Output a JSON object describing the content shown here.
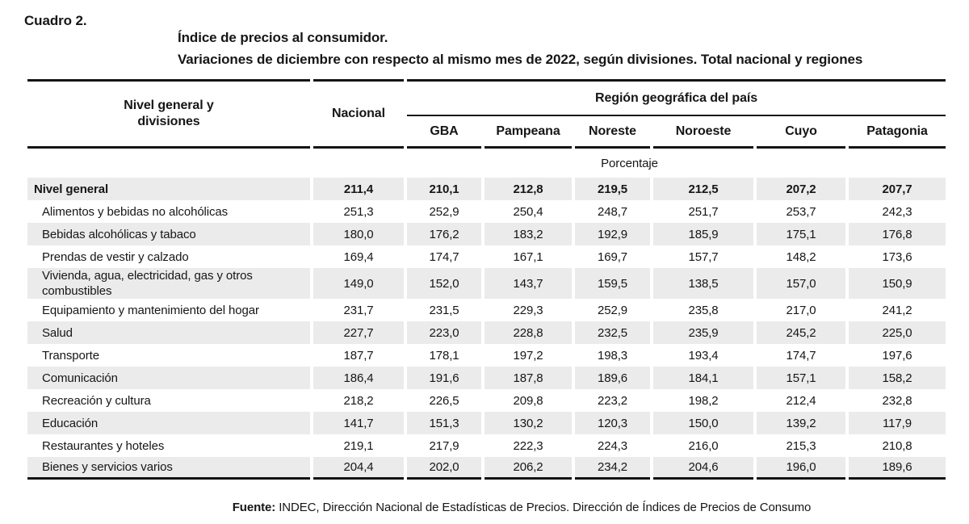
{
  "page": {
    "cuadro_label": "Cuadro 2.",
    "title_lines": [
      "Índice de precios al consumidor.",
      "Variaciones de diciembre con respecto al mismo mes de 2022, según divisiones. Total nacional y regiones"
    ]
  },
  "table": {
    "row_header_lines": [
      "Nivel general y",
      "divisiones"
    ],
    "national_header": "Nacional",
    "region_group_header": "Región geográfica del país",
    "region_headers": [
      "GBA",
      "Pampeana",
      "Noreste",
      "Noroeste",
      "Cuyo",
      "Patagonia"
    ],
    "unit_label": "Porcentaje",
    "columns": [
      "Nacional",
      "GBA",
      "Pampeana",
      "Noreste",
      "Noroeste",
      "Cuyo",
      "Patagonia"
    ],
    "rows": [
      {
        "label": "Nivel general",
        "values": [
          "211,4",
          "210,1",
          "212,8",
          "219,5",
          "212,5",
          "207,2",
          "207,7"
        ]
      },
      {
        "label": "Alimentos y bebidas no alcohólicas",
        "values": [
          "251,3",
          "252,9",
          "250,4",
          "248,7",
          "251,7",
          "253,7",
          "242,3"
        ]
      },
      {
        "label": "Bebidas alcohólicas y tabaco",
        "values": [
          "180,0",
          "176,2",
          "183,2",
          "192,9",
          "185,9",
          "175,1",
          "176,8"
        ]
      },
      {
        "label": "Prendas de vestir y calzado",
        "values": [
          "169,4",
          "174,7",
          "167,1",
          "169,7",
          "157,7",
          "148,2",
          "173,6"
        ]
      },
      {
        "label": "Vivienda, agua, electricidad, gas y otros combustibles",
        "values": [
          "149,0",
          "152,0",
          "143,7",
          "159,5",
          "138,5",
          "157,0",
          "150,9"
        ]
      },
      {
        "label": "Equipamiento y mantenimiento del hogar",
        "values": [
          "231,7",
          "231,5",
          "229,3",
          "252,9",
          "235,8",
          "217,0",
          "241,2"
        ]
      },
      {
        "label": "Salud",
        "values": [
          "227,7",
          "223,0",
          "228,8",
          "232,5",
          "235,9",
          "245,2",
          "225,0"
        ]
      },
      {
        "label": "Transporte",
        "values": [
          "187,7",
          "178,1",
          "197,2",
          "198,3",
          "193,4",
          "174,7",
          "197,6"
        ]
      },
      {
        "label": "Comunicación",
        "values": [
          "186,4",
          "191,6",
          "187,8",
          "189,6",
          "184,1",
          "157,1",
          "158,2"
        ]
      },
      {
        "label": "Recreación y cultura",
        "values": [
          "218,2",
          "226,5",
          "209,8",
          "223,2",
          "198,2",
          "212,4",
          "232,8"
        ]
      },
      {
        "label": "Educación",
        "values": [
          "141,7",
          "151,3",
          "130,2",
          "120,3",
          "150,0",
          "139,2",
          "117,9"
        ]
      },
      {
        "label": "Restaurantes y hoteles",
        "values": [
          "219,1",
          "217,9",
          "222,3",
          "224,3",
          "216,0",
          "215,3",
          "210,8"
        ]
      },
      {
        "label": "Bienes y servicios varios",
        "values": [
          "204,4",
          "202,0",
          "206,2",
          "234,2",
          "204,6",
          "196,0",
          "189,6"
        ]
      }
    ]
  },
  "footer": {
    "source_label": "Fuente:",
    "source_text": " INDEC, Dirección Nacional de Estadísticas de Precios. Dirección de Índices de Precios de Consumo"
  },
  "colors": {
    "row_stripe": "#ebebeb",
    "rule": "#141414",
    "text": "#161616"
  }
}
